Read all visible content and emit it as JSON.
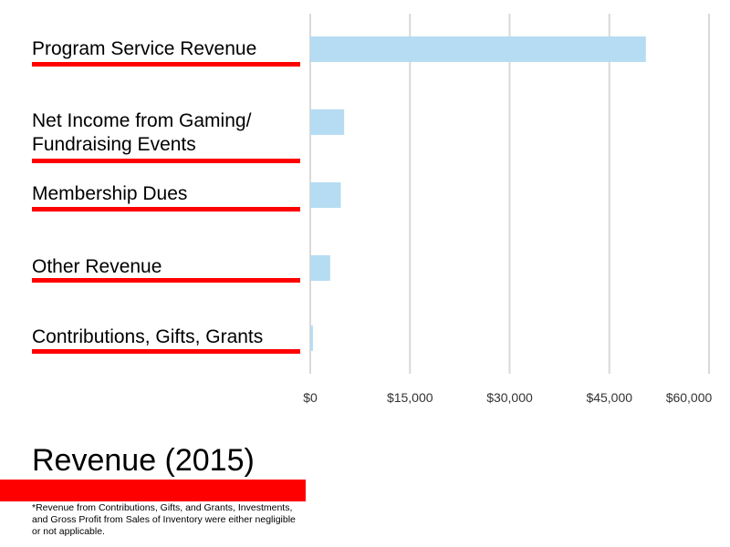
{
  "colors": {
    "bar": "#b5dcf2",
    "accent": "#ff0000",
    "grid": "#d9d9d9"
  },
  "chart_data": {
    "type": "bar",
    "orientation": "horizontal",
    "title": "Revenue (2015)",
    "categories": [
      "Program Service Revenue",
      "Net Income from Gaming/\nFundraising Events",
      "Membership Dues",
      "Other Revenue",
      "Contributions, Gifts, Grants"
    ],
    "values": [
      50500,
      5100,
      4600,
      3000,
      400
    ],
    "xlim": [
      0,
      60000
    ],
    "ticks": [
      "$0",
      "$15,000",
      "$30,000",
      "$45,000",
      "$60,000"
    ],
    "grid": true,
    "footnote": "*Revenue from Contributions, Gifts, and Grants, Investments, and Gross Profit from Sales of Inventory were either negligible or not applicable."
  }
}
